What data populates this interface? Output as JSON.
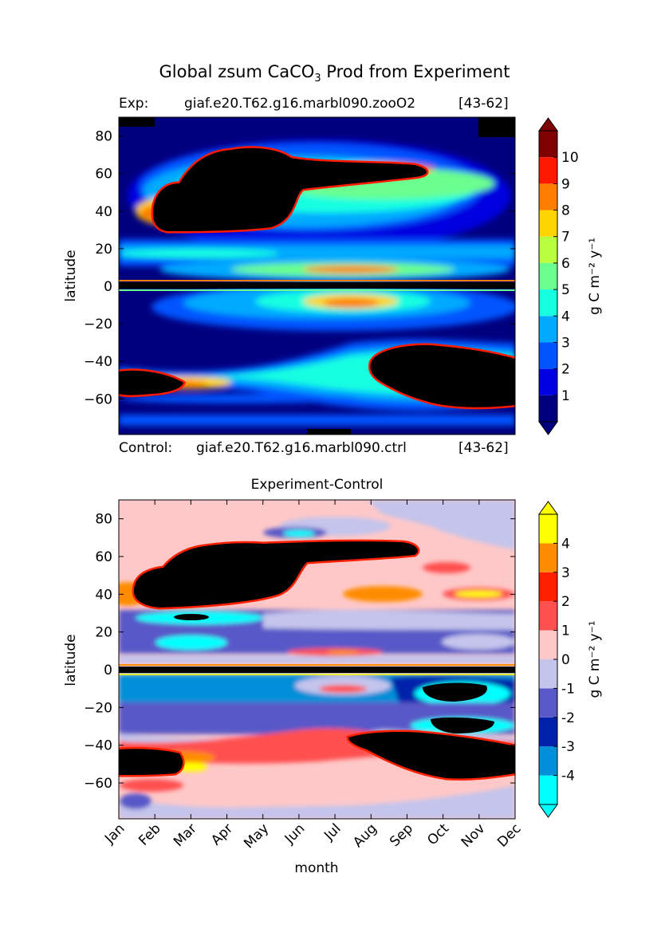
{
  "figure": {
    "title_prefix": "Global zsum CaCO",
    "title_sub": "3",
    "title_suffix": " Prod from Experiment",
    "exp_label": "Exp:",
    "exp_name": "giaf.e20.T62.g16.marbl090.zooO2",
    "exp_years": "[43-62]",
    "ctrl_label": "Control:",
    "ctrl_name": "giaf.e20.T62.g16.marbl090.ctrl",
    "ctrl_years": "[43-62]",
    "diff_title": "Experiment-Control"
  },
  "colors": {
    "seq": [
      "#00007f",
      "#0000e0",
      "#0055ff",
      "#00aaff",
      "#16ffe1",
      "#6aff8e",
      "#b8ff3f",
      "#ffd400",
      "#ff7d00",
      "#ff1900",
      "#7f0000"
    ],
    "div": [
      "#00ffff",
      "#008fd8",
      "#0022aa",
      "#5959c8",
      "#c4c4ec",
      "#ffc8c8",
      "#ff5050",
      "#ff2000",
      "#ff8c00",
      "#ffff00"
    ],
    "black": "#000000"
  },
  "chart_data": [
    {
      "type": "heatmap",
      "panel": "experiment",
      "xlabel": "",
      "ylabel": "latitude",
      "ylim": [
        -79,
        90
      ],
      "yticks": [
        80,
        60,
        40,
        20,
        0,
        -20,
        -40,
        -60
      ],
      "colorbar": {
        "label": "g C m⁻² y⁻¹",
        "levels": [
          1,
          2,
          3,
          4,
          5,
          6,
          7,
          8,
          9,
          10
        ],
        "extend": "both"
      }
    },
    {
      "type": "heatmap",
      "panel": "difference",
      "xlabel": "month",
      "ylabel": "latitude",
      "ylim": [
        -79,
        90
      ],
      "yticks": [
        80,
        60,
        40,
        20,
        0,
        -20,
        -40,
        -60
      ],
      "xticks": [
        "Jan",
        "Feb",
        "Mar",
        "Apr",
        "May",
        "Jun",
        "Jul",
        "Aug",
        "Sep",
        "Oct",
        "Nov",
        "Dec"
      ],
      "colorbar": {
        "label": "g C m⁻² y⁻¹",
        "levels": [
          4,
          3,
          2,
          1,
          0,
          -1,
          -2,
          -3,
          -4
        ],
        "extend": "both"
      }
    }
  ]
}
